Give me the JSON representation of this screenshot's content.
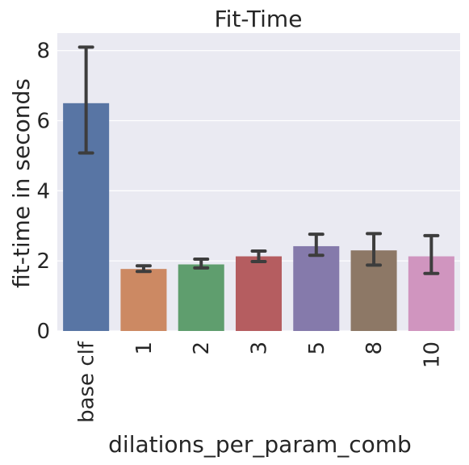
{
  "chart_data": {
    "type": "bar",
    "title": "Fit-Time",
    "xlabel": "dilations_per_param_comb",
    "ylabel": "fit-time in seconds",
    "categories": [
      "base clf",
      "1",
      "2",
      "3",
      "5",
      "8",
      "10"
    ],
    "values": [
      6.5,
      1.77,
      1.9,
      2.13,
      2.42,
      2.3,
      2.13
    ],
    "error_low": [
      5.08,
      1.7,
      1.8,
      1.98,
      2.16,
      1.88,
      1.64
    ],
    "error_high": [
      8.1,
      1.86,
      2.05,
      2.28,
      2.76,
      2.78,
      2.72
    ],
    "colors": [
      "#5875a4",
      "#cc8963",
      "#5f9e6e",
      "#b55d60",
      "#857aab",
      "#8d7866",
      "#d095bf"
    ],
    "error_color": "#3d3d3d",
    "yticks": [
      0,
      2,
      4,
      6,
      8
    ],
    "ylim": [
      0,
      8.5
    ],
    "grid": true,
    "background": "#eaeaf2"
  }
}
